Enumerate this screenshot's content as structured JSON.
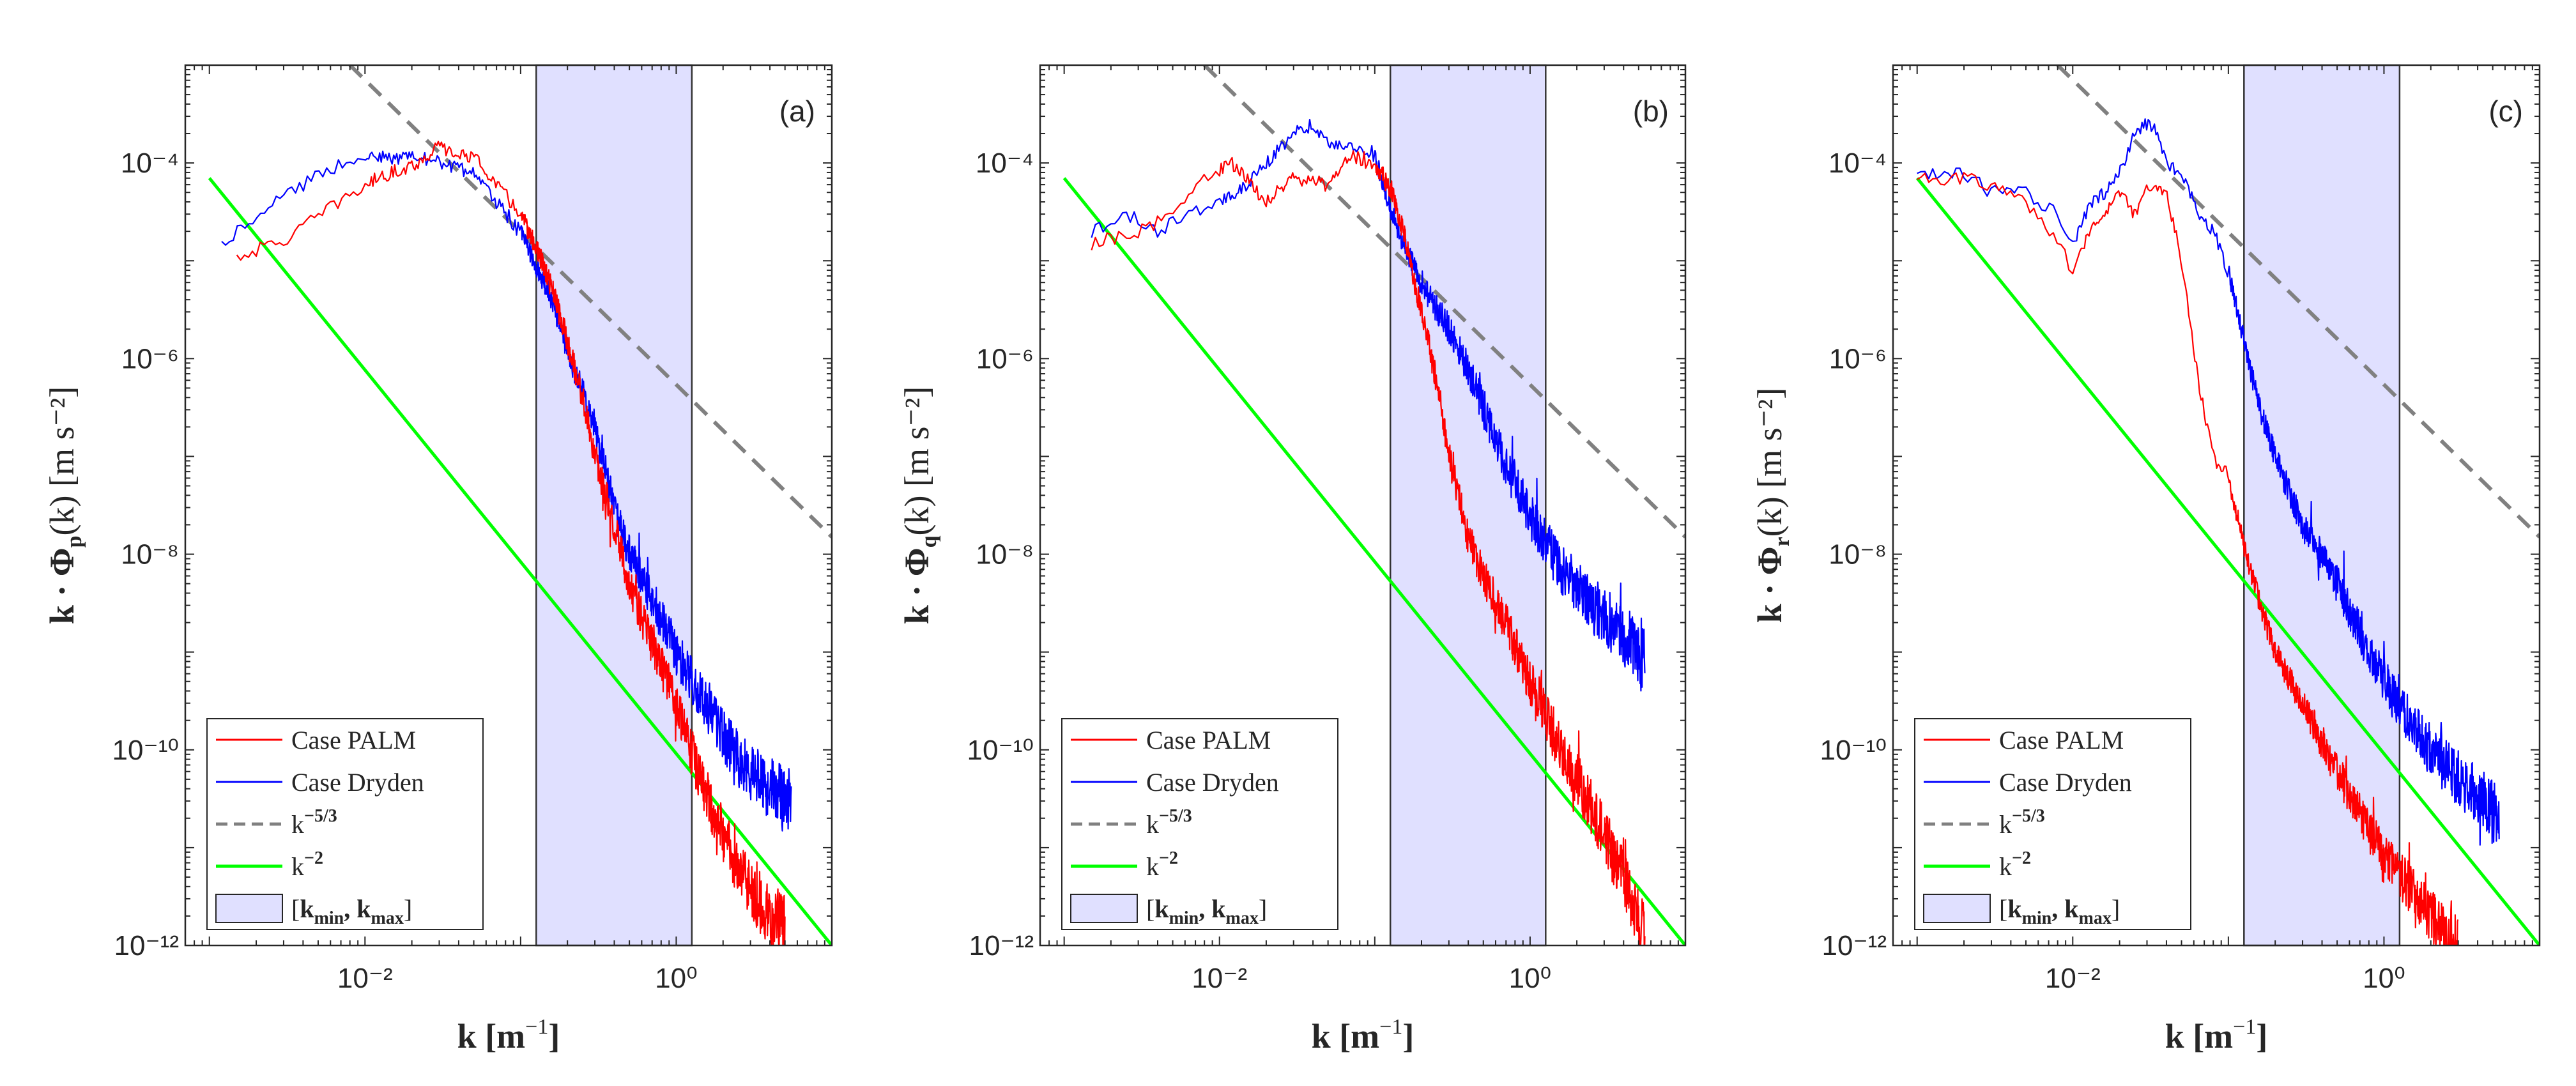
{
  "chart_data": [
    {
      "type": "line",
      "panel_label": "(a)",
      "xlabel": "k [m⁻¹]",
      "ylabel": "k · Φp(k) [m s⁻²]",
      "ylabel_base": "k · Φ",
      "ylabel_sub": "p",
      "ylabel_tail": "(k) [m s⁻²]",
      "xscale": "log",
      "yscale": "log",
      "xlim": [
        0.0007,
        10
      ],
      "ylim": [
        1e-12,
        0.001
      ],
      "xticks": [
        {
          "v": 0.01,
          "label": "10⁻²"
        },
        {
          "v": 1,
          "label": "10⁰"
        }
      ],
      "yticks": [
        {
          "v": 1e-12,
          "label": "10⁻¹²"
        },
        {
          "v": 1e-10,
          "label": "10⁻¹⁰"
        },
        {
          "v": 1e-08,
          "label": "10⁻⁸"
        },
        {
          "v": 1e-06,
          "label": "10⁻⁶"
        },
        {
          "v": 0.0001,
          "label": "10⁻⁴"
        }
      ],
      "band": [
        0.126,
        1.26
      ],
      "legend_position": "lower-left",
      "series": [
        {
          "name": "Case PALM",
          "color": "#ff0000",
          "x": [
            0.0015,
            0.003,
            0.006,
            0.012,
            0.022,
            0.03,
            0.038,
            0.05,
            0.07,
            0.1,
            0.13,
            0.16,
            0.2,
            0.25,
            0.3,
            0.4,
            0.5,
            0.7,
            1.0,
            1.3,
            1.7,
            2.5,
            3.5,
            5.0
          ],
          "y": [
            1.1e-05,
            1.6e-05,
            3.5e-05,
            7e-05,
            0.0001,
            0.00015,
            0.00012,
            0.00012,
            6e-05,
            3e-05,
            1.2e-05,
            5e-06,
            1.5e-06,
            4e-07,
            1e-07,
            2e-08,
            5e-09,
            1.2e-09,
            3e-10,
            8e-11,
            2.5e-11,
            6e-12,
            2.5e-12,
            1.5e-12
          ]
        },
        {
          "name": "Case Dryden",
          "color": "#0000ff",
          "x": [
            0.0012,
            0.002,
            0.004,
            0.007,
            0.01,
            0.015,
            0.02,
            0.03,
            0.05,
            0.07,
            0.1,
            0.13,
            0.16,
            0.2,
            0.3,
            0.4,
            0.5,
            0.7,
            1.0,
            1.5,
            2.5,
            4.0,
            5.5
          ],
          "y": [
            1.5e-05,
            3e-05,
            6e-05,
            0.0001,
            0.00012,
            0.00011,
            0.00012,
            0.0001,
            8e-05,
            4e-05,
            2e-05,
            8e-06,
            4e-06,
            1.2e-06,
            2e-07,
            3e-08,
            1e-08,
            3.5e-09,
            1e-09,
            3e-10,
            8e-11,
            4e-11,
            3e-11
          ]
        },
        {
          "name": "k^{-5/3}",
          "color": "#808080",
          "dashed": true,
          "x": [
            0.008,
            10
          ],
          "y": [
            0.001,
            1.5e-08
          ]
        },
        {
          "name": "k^{-2}",
          "color": "#00ff00",
          "x": [
            0.001,
            10
          ],
          "y": [
            7e-05,
            1e-12
          ]
        }
      ]
    },
    {
      "type": "line",
      "panel_label": "(b)",
      "xlabel": "k [m⁻¹]",
      "ylabel": "k · Φq(k) [m s⁻²]",
      "ylabel_base": "k · Φ",
      "ylabel_sub": "q",
      "ylabel_tail": "(k) [m s⁻²]",
      "xscale": "log",
      "yscale": "log",
      "xlim": [
        0.0007,
        10
      ],
      "ylim": [
        1e-12,
        0.001
      ],
      "xticks": [
        {
          "v": 0.01,
          "label": "10⁻²"
        },
        {
          "v": 1,
          "label": "10⁰"
        }
      ],
      "yticks": [
        {
          "v": 1e-12,
          "label": "10⁻¹²"
        },
        {
          "v": 1e-10,
          "label": "10⁻¹⁰"
        },
        {
          "v": 1e-08,
          "label": "10⁻⁸"
        },
        {
          "v": 1e-06,
          "label": "10⁻⁶"
        },
        {
          "v": 0.0001,
          "label": "10⁻⁴"
        }
      ],
      "band": [
        0.126,
        1.26
      ],
      "legend_position": "lower-left",
      "series": [
        {
          "name": "Case PALM",
          "color": "#ff0000",
          "x": [
            0.0015,
            0.003,
            0.005,
            0.008,
            0.012,
            0.02,
            0.03,
            0.05,
            0.07,
            0.1,
            0.13,
            0.16,
            0.2,
            0.25,
            0.3,
            0.4,
            0.5,
            0.7,
            1.0,
            1.5,
            2.5,
            4.0,
            5.5
          ],
          "y": [
            1.5e-05,
            2e-05,
            3e-05,
            7e-05,
            0.0001,
            4e-05,
            7e-05,
            6e-05,
            0.00012,
            0.0001,
            5e-05,
            1.5e-05,
            3e-06,
            6e-07,
            1e-07,
            1.5e-08,
            6e-09,
            2e-09,
            5e-10,
            1.2e-10,
            2.5e-11,
            5e-12,
            1.2e-12
          ]
        },
        {
          "name": "Case Dryden",
          "color": "#0000ff",
          "x": [
            0.0015,
            0.0025,
            0.004,
            0.006,
            0.01,
            0.015,
            0.02,
            0.03,
            0.04,
            0.05,
            0.07,
            0.1,
            0.13,
            0.16,
            0.2,
            0.3,
            0.4,
            0.5,
            0.7,
            1.0,
            1.5,
            2.5,
            4.0,
            5.5
          ],
          "y": [
            2e-05,
            3e-05,
            2e-05,
            3e-05,
            4e-05,
            6e-05,
            0.0001,
            0.0002,
            0.00025,
            0.00015,
            0.00015,
            0.00012,
            3e-05,
            1.2e-05,
            6e-06,
            2e-06,
            8e-07,
            3e-07,
            8e-08,
            2.5e-08,
            8e-09,
            3e-09,
            1.5e-09,
            8e-10
          ]
        },
        {
          "name": "k^{-5/3}",
          "color": "#808080",
          "dashed": true,
          "x": [
            0.008,
            10
          ],
          "y": [
            0.001,
            1.5e-08
          ]
        },
        {
          "name": "k^{-2}",
          "color": "#00ff00",
          "x": [
            0.001,
            10
          ],
          "y": [
            7e-05,
            1e-12
          ]
        }
      ]
    },
    {
      "type": "line",
      "panel_label": "(c)",
      "xlabel": "k [m⁻¹]",
      "ylabel": "k · Φr(k) [m s⁻²]",
      "ylabel_base": "k · Φ",
      "ylabel_sub": "r",
      "ylabel_tail": "(k) [m s⁻²]",
      "xscale": "log",
      "yscale": "log",
      "xlim": [
        0.0007,
        10
      ],
      "ylim": [
        1e-12,
        0.001
      ],
      "xticks": [
        {
          "v": 0.01,
          "label": "10⁻²"
        },
        {
          "v": 1,
          "label": "10⁰"
        }
      ],
      "yticks": [
        {
          "v": 1e-12,
          "label": "10⁻¹²"
        },
        {
          "v": 1e-10,
          "label": "10⁻¹⁰"
        },
        {
          "v": 1e-08,
          "label": "10⁻⁸"
        },
        {
          "v": 1e-06,
          "label": "10⁻⁶"
        },
        {
          "v": 0.0001,
          "label": "10⁻⁴"
        }
      ],
      "band": [
        0.126,
        1.26
      ],
      "legend_position": "lower-left",
      "series": [
        {
          "name": "Case PALM",
          "color": "#ff0000",
          "x": [
            0.001,
            0.002,
            0.003,
            0.005,
            0.008,
            0.01,
            0.013,
            0.016,
            0.02,
            0.025,
            0.03,
            0.04,
            0.05,
            0.065,
            0.08,
            0.1,
            0.13,
            0.16,
            0.2,
            0.3,
            0.5,
            0.8,
            1.2,
            2.0,
            3.0
          ],
          "y": [
            7e-05,
            7e-05,
            6e-05,
            4e-05,
            1.5e-05,
            8e-06,
            2e-05,
            3e-05,
            5e-05,
            3e-05,
            6e-05,
            5e-05,
            1e-05,
            5e-07,
            1e-07,
            6e-08,
            1e-08,
            3e-09,
            1e-09,
            3e-10,
            6e-11,
            1.5e-11,
            6e-12,
            2e-12,
            1e-12
          ]
        },
        {
          "name": "Case Dryden",
          "color": "#0000ff",
          "x": [
            0.001,
            0.002,
            0.003,
            0.005,
            0.008,
            0.01,
            0.013,
            0.016,
            0.02,
            0.025,
            0.03,
            0.035,
            0.04,
            0.05,
            0.065,
            0.08,
            0.1,
            0.13,
            0.16,
            0.2,
            0.3,
            0.5,
            0.8,
            1.2,
            2.0,
            3.5,
            5.5
          ],
          "y": [
            8e-05,
            8e-05,
            5e-05,
            5e-05,
            3e-05,
            1.5e-05,
            4e-05,
            5e-05,
            8e-05,
            0.0002,
            0.00025,
            0.0002,
            0.0001,
            8e-05,
            3e-05,
            2e-05,
            8e-06,
            1.2e-06,
            3e-07,
            1e-07,
            2e-08,
            5e-09,
            1e-09,
            3e-10,
            1e-10,
            4e-11,
            2e-11
          ]
        },
        {
          "name": "k^{-5/3}",
          "color": "#808080",
          "dashed": true,
          "x": [
            0.008,
            10
          ],
          "y": [
            0.001,
            1.5e-08
          ]
        },
        {
          "name": "k^{-2}",
          "color": "#00ff00",
          "x": [
            0.001,
            10
          ],
          "y": [
            7e-05,
            1e-12
          ]
        }
      ]
    }
  ],
  "legend": {
    "palm_label": "Case PALM",
    "dryden_label": "Case Dryden",
    "k53_base": "k",
    "k53_exp": "−5/3",
    "k2_base": "k",
    "k2_exp": "−2",
    "band_label": "[kmin, kmax]",
    "band_open": "[",
    "band_k1": "k",
    "band_sub1": "min",
    "band_sep": ", ",
    "band_k2": "k",
    "band_sub2": "max",
    "band_close": "]"
  },
  "colors": {
    "palm": "#ff0000",
    "dryden": "#0000ff",
    "k53": "#808080",
    "k2": "#00ff00",
    "band_fill": "#e0e0ff",
    "axes": "#262626"
  },
  "xlabel_parts": {
    "k": "k",
    "unit": "[m",
    "exp": "−1",
    "close": "]"
  }
}
